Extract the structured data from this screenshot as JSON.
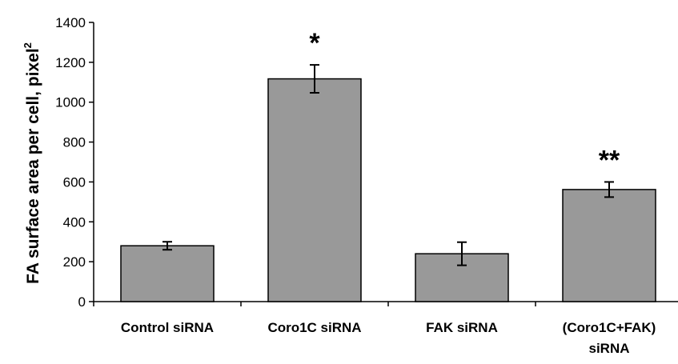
{
  "chart_data": {
    "type": "bar",
    "title": "",
    "xlabel": "",
    "ylabel": "FA surface area per cell, pixel",
    "ylabel_superscript": "2",
    "ylim": [
      0,
      1400
    ],
    "yticks": [
      0,
      200,
      400,
      600,
      800,
      1000,
      1200,
      1400
    ],
    "categories": [
      [
        "Control siRNA"
      ],
      [
        "Coro1C siRNA"
      ],
      [
        "FAK siRNA"
      ],
      [
        "(Coro1C+FAK)",
        "siRNA"
      ]
    ],
    "values": [
      280,
      1117,
      240,
      562
    ],
    "errors": [
      20,
      70,
      58,
      38
    ],
    "annotations": [
      "",
      "*",
      "",
      "**"
    ],
    "bar_color": "#999999",
    "grid": false,
    "legend": "none"
  }
}
